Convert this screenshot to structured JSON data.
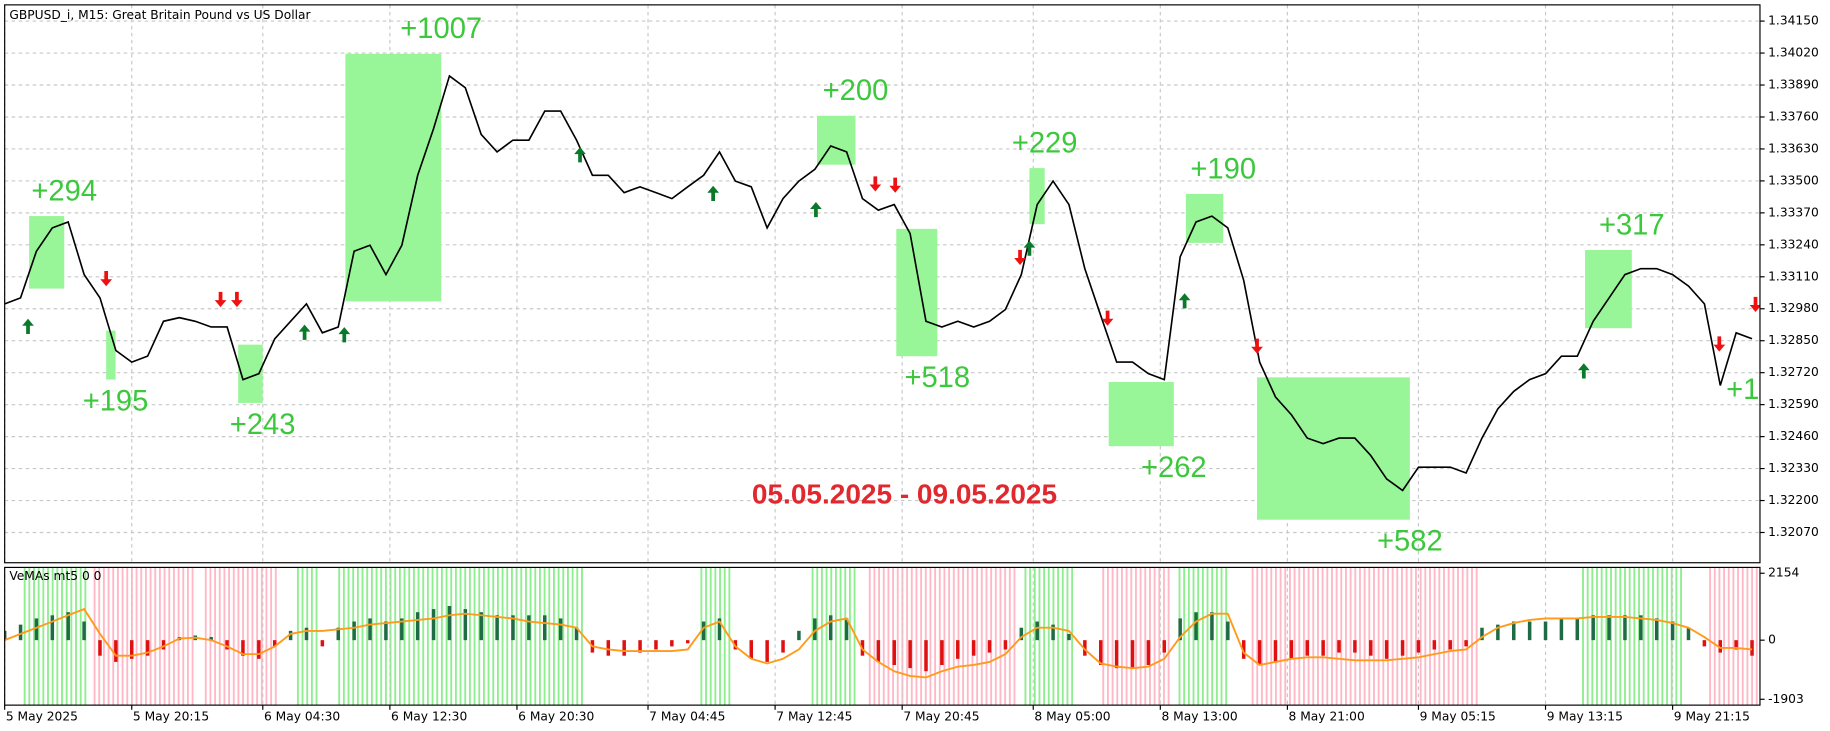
{
  "chart_data": {
    "type": "line",
    "title": "GBPUSD_i, M15:  Great Britain Pound vs US Dollar",
    "annotation": "05.05.2025 - 09.05.2025",
    "annotation_color": "#e0282e",
    "color": "#000000",
    "x": [
      0,
      1,
      2,
      3,
      4,
      5,
      6,
      7,
      8,
      9,
      10,
      11,
      12,
      13,
      14,
      15,
      16,
      17,
      18,
      19,
      20,
      21,
      22,
      23,
      24,
      25,
      26,
      27,
      28,
      29,
      30,
      31,
      32,
      33,
      34,
      35,
      36,
      37,
      38,
      39,
      40,
      41,
      42,
      43,
      44,
      45,
      46,
      47,
      48,
      49,
      50,
      51,
      52,
      53,
      54,
      55,
      56,
      57,
      58,
      59,
      60,
      61,
      62,
      63,
      64,
      65,
      66,
      67,
      68,
      69,
      70,
      71,
      72,
      73,
      74,
      75,
      76,
      77,
      78,
      79,
      80,
      81,
      82,
      83,
      84,
      85,
      86,
      87,
      88,
      89,
      90,
      91,
      92,
      93,
      94,
      95,
      96,
      97,
      98,
      99,
      100,
      101,
      102,
      103,
      104,
      105,
      106,
      107,
      108,
      109,
      110
    ],
    "values": [
      1.33,
      1.33024,
      1.33214,
      1.33309,
      1.33333,
      1.33119,
      1.33024,
      1.3281,
      1.32763,
      1.32787,
      1.32929,
      1.32944,
      1.32929,
      1.32906,
      1.32906,
      1.32692,
      1.32716,
      1.32858,
      1.32929,
      1.33,
      1.32882,
      1.32906,
      1.33214,
      1.33238,
      1.33119,
      1.33238,
      1.33523,
      1.33713,
      1.33927,
      1.33879,
      1.33689,
      1.33618,
      1.33666,
      1.33666,
      1.33784,
      1.33784,
      1.33666,
      1.33523,
      1.33523,
      1.33452,
      1.33476,
      1.33452,
      1.33428,
      1.33476,
      1.33523,
      1.33618,
      1.33499,
      1.33476,
      1.33309,
      1.33428,
      1.33499,
      1.33547,
      1.33642,
      1.33618,
      1.33428,
      1.33381,
      1.33404,
      1.33286,
      1.32929,
      1.32906,
      1.32929,
      1.32906,
      1.32929,
      1.32977,
      1.33119,
      1.33404,
      1.33499,
      1.33404,
      1.33143,
      1.32953,
      1.32763,
      1.32763,
      1.32716,
      1.32692,
      1.33191,
      1.33333,
      1.33357,
      1.33309,
      1.33096,
      1.32763,
      1.32621,
      1.32549,
      1.32454,
      1.32431,
      1.32454,
      1.32454,
      1.32383,
      1.32288,
      1.32241,
      1.32336,
      1.32336,
      1.32336,
      1.32312,
      1.32454,
      1.32573,
      1.32644,
      1.32692,
      1.32716,
      1.32787,
      1.32787,
      1.32929,
      1.33024,
      1.33119,
      1.33143,
      1.33143,
      1.33119,
      1.33072,
      1.33,
      1.32668,
      1.32882,
      1.32858
    ],
    "xlim": [
      0,
      110.5
    ],
    "xticks": [
      {
        "value": 0,
        "label": "5 May 2025"
      },
      {
        "value": 8,
        "label": "5 May 20:15"
      },
      {
        "value": 16.25,
        "label": "6 May 04:30"
      },
      {
        "value": 24.25,
        "label": "6 May 12:30"
      },
      {
        "value": 32.25,
        "label": "6 May 20:30"
      },
      {
        "value": 40.5,
        "label": "7 May 04:45"
      },
      {
        "value": 48.5,
        "label": "7 May 12:45"
      },
      {
        "value": 56.5,
        "label": "7 May 20:45"
      },
      {
        "value": 64.75,
        "label": "8 May 05:00"
      },
      {
        "value": 72.75,
        "label": "8 May 13:00"
      },
      {
        "value": 80.75,
        "label": "8 May 21:00"
      },
      {
        "value": 89,
        "label": "9 May 05:15"
      },
      {
        "value": 97,
        "label": "9 May 13:15"
      },
      {
        "value": 105,
        "label": "9 May 21:15"
      }
    ],
    "ylim": [
      1.31947,
      1.34216
    ],
    "yticks": [
      {
        "value": 1.3415,
        "label": "1.34150"
      },
      {
        "value": 1.3402,
        "label": "1.34020"
      },
      {
        "value": 1.3389,
        "label": "1.33890"
      },
      {
        "value": 1.3376,
        "label": "1.33760"
      },
      {
        "value": 1.3363,
        "label": "1.33630"
      },
      {
        "value": 1.335,
        "label": "1.33500"
      },
      {
        "value": 1.3337,
        "label": "1.33370"
      },
      {
        "value": 1.3324,
        "label": "1.33240"
      },
      {
        "value": 1.3311,
        "label": "1.33110"
      },
      {
        "value": 1.3298,
        "label": "1.32980"
      },
      {
        "value": 1.3285,
        "label": "1.32850"
      },
      {
        "value": 1.3272,
        "label": "1.32720"
      },
      {
        "value": 1.3259,
        "label": "1.32590"
      },
      {
        "value": 1.3246,
        "label": "1.32460"
      },
      {
        "value": 1.3233,
        "label": "1.32330"
      },
      {
        "value": 1.322,
        "label": "1.32200"
      },
      {
        "value": 1.3207,
        "label": "1.32070"
      }
    ],
    "grid": true,
    "box_color": "#98f598",
    "label_color": "#3cc83c",
    "boxes": [
      {
        "x": [
          1.54,
          3.75
        ],
        "y": [
          1.33357,
          1.33062
        ],
        "label": "+294",
        "label_side": "above"
      },
      {
        "x": [
          6.39,
          6.98
        ],
        "y": [
          1.32891,
          1.32692
        ],
        "label": "+195",
        "label_side": "below"
      },
      {
        "x": [
          14.7,
          16.24
        ],
        "y": [
          1.32834,
          1.32597
        ],
        "label": "+243",
        "label_side": "below"
      },
      {
        "x": [
          21.45,
          27.48
        ],
        "y": [
          1.34017,
          1.3301
        ],
        "label": "+1007",
        "label_side": "above"
      },
      {
        "x": [
          51.14,
          53.56
        ],
        "y": [
          1.33765,
          1.33566
        ],
        "label": "+200",
        "label_side": "above"
      },
      {
        "x": [
          56.13,
          58.71
        ],
        "y": [
          1.33305,
          1.32787
        ],
        "label": "+518",
        "label_side": "below"
      },
      {
        "x": [
          64.51,
          65.47
        ],
        "y": [
          1.33552,
          1.33324
        ],
        "label": "+229",
        "label_side": "above"
      },
      {
        "x": [
          69.5,
          73.6
        ],
        "y": [
          1.32682,
          1.32421
        ],
        "label": "+262",
        "label_side": "below"
      },
      {
        "x": [
          74.36,
          76.71
        ],
        "y": [
          1.33447,
          1.33248
        ],
        "label": "+190",
        "label_side": "above"
      },
      {
        "x": [
          78.84,
          88.46
        ],
        "y": [
          1.32701,
          1.32122
        ],
        "label": "+582",
        "label_side": "below"
      },
      {
        "x": [
          99.49,
          102.43
        ],
        "y": [
          1.33219,
          1.32901
        ],
        "label": "+317",
        "label_side": "above"
      }
    ],
    "cut_label": "+1",
    "up_color": "#0a7a2a",
    "down_color": "#ee1111",
    "signals": [
      {
        "x": 1.47,
        "y": 1.32906,
        "dir": "up"
      },
      {
        "x": 18.88,
        "y": 1.32882,
        "dir": "up"
      },
      {
        "x": 21.38,
        "y": 1.32872,
        "dir": "up"
      },
      {
        "x": 36.22,
        "y": 1.33604,
        "dir": "up"
      },
      {
        "x": 44.6,
        "y": 1.33447,
        "dir": "up"
      },
      {
        "x": 51.07,
        "y": 1.33381,
        "dir": "up"
      },
      {
        "x": 64.51,
        "y": 1.33224,
        "dir": "up"
      },
      {
        "x": 74.28,
        "y": 1.3301,
        "dir": "up"
      },
      {
        "x": 99.41,
        "y": 1.32725,
        "dir": "up"
      },
      {
        "x": 6.39,
        "y": 1.33105,
        "dir": "down"
      },
      {
        "x": 13.59,
        "y": 1.3302,
        "dir": "down"
      },
      {
        "x": 14.62,
        "y": 1.3302,
        "dir": "down"
      },
      {
        "x": 54.81,
        "y": 1.3349,
        "dir": "down"
      },
      {
        "x": 56.06,
        "y": 1.33485,
        "dir": "down"
      },
      {
        "x": 63.92,
        "y": 1.33191,
        "dir": "down"
      },
      {
        "x": 69.43,
        "y": 1.32944,
        "dir": "down"
      },
      {
        "x": 78.84,
        "y": 1.3283,
        "dir": "down"
      },
      {
        "x": 107.94,
        "y": 1.32839,
        "dir": "down"
      },
      {
        "x": 110.22,
        "y": 1.33,
        "dir": "down"
      }
    ],
    "indicator": {
      "title": "VeMAs mt5 0 0",
      "type": "bar",
      "ylim": [
        -2091,
        2342
      ],
      "yticks": [
        2154,
        0,
        -1903
      ],
      "up_color": "#1f6b45",
      "down_color": "#e01010",
      "ma_color": "#ff9a1a",
      "values": [
        300,
        500,
        700,
        800,
        900,
        600,
        -500,
        -700,
        -600,
        -500,
        -300,
        100,
        150,
        100,
        -300,
        -500,
        -600,
        -200,
        300,
        400,
        -200,
        400,
        600,
        700,
        600,
        700,
        900,
        1000,
        1100,
        1000,
        900,
        800,
        800,
        800,
        800,
        700,
        400,
        -400,
        -500,
        -500,
        -400,
        -300,
        -200,
        -100,
        600,
        700,
        -300,
        -600,
        -700,
        -400,
        300,
        700,
        800,
        700,
        -500,
        -700,
        -800,
        -900,
        -1000,
        -800,
        -600,
        -500,
        -400,
        -300,
        400,
        600,
        500,
        200,
        -500,
        -800,
        -900,
        -900,
        -800,
        -400,
        700,
        900,
        900,
        600,
        -600,
        -800,
        -700,
        -600,
        -500,
        -500,
        -400,
        -400,
        -500,
        -600,
        -500,
        -400,
        -300,
        -300,
        -200,
        400,
        500,
        600,
        600,
        600,
        700,
        700,
        800,
        800,
        800,
        800,
        700,
        600,
        400,
        -200,
        -400,
        -300,
        -500
      ],
      "ma": [
        0,
        200,
        400,
        600,
        800,
        1000,
        200,
        -500,
        -500,
        -400,
        -200,
        50,
        80,
        0,
        -200,
        -450,
        -450,
        -200,
        200,
        300,
        300,
        350,
        400,
        500,
        550,
        600,
        650,
        700,
        800,
        850,
        800,
        750,
        700,
        600,
        550,
        500,
        400,
        -200,
        -300,
        -350,
        -350,
        -350,
        -350,
        -300,
        400,
        600,
        -200,
        -600,
        -750,
        -600,
        -300,
        300,
        600,
        700,
        -300,
        -700,
        -1000,
        -1150,
        -1200,
        -1000,
        -850,
        -800,
        -700,
        -450,
        100,
        400,
        400,
        300,
        -300,
        -750,
        -850,
        -900,
        -850,
        -600,
        100,
        600,
        850,
        850,
        -400,
        -800,
        -700,
        -600,
        -550,
        -550,
        -600,
        -650,
        -650,
        -650,
        -600,
        -550,
        -450,
        -350,
        -300,
        100,
        400,
        550,
        650,
        700,
        700,
        700,
        750,
        750,
        750,
        700,
        650,
        550,
        400,
        100,
        -250,
        -250,
        -300
      ],
      "zones": [
        {
          "x": [
            1.2,
            5.2
          ],
          "color": "#8fee8f"
        },
        {
          "x": [
            18.4,
            19.7
          ],
          "color": "#8fee8f"
        },
        {
          "x": [
            21,
            36.4
          ],
          "color": "#8fee8f"
        },
        {
          "x": [
            43.8,
            45.6
          ],
          "color": "#8fee8f"
        },
        {
          "x": [
            50.8,
            53.7
          ],
          "color": "#8fee8f"
        },
        {
          "x": [
            64.2,
            67.3
          ],
          "color": "#8fee8f"
        },
        {
          "x": [
            73.9,
            77.1
          ],
          "color": "#8fee8f"
        },
        {
          "x": [
            99.3,
            105.5
          ],
          "color": "#8fee8f"
        },
        {
          "x": [
            5.6,
            11.8
          ],
          "color": "#ffb8c6"
        },
        {
          "x": [
            12.6,
            17.3
          ],
          "color": "#ffb8c6"
        },
        {
          "x": [
            54.4,
            63.6
          ],
          "color": "#ffb8c6"
        },
        {
          "x": [
            69.1,
            73.5
          ],
          "color": "#ffb8c6"
        },
        {
          "x": [
            78.5,
            92.7
          ],
          "color": "#ffb8c6"
        },
        {
          "x": [
            107.3,
            110.5
          ],
          "color": "#ffb8c6"
        }
      ]
    }
  }
}
